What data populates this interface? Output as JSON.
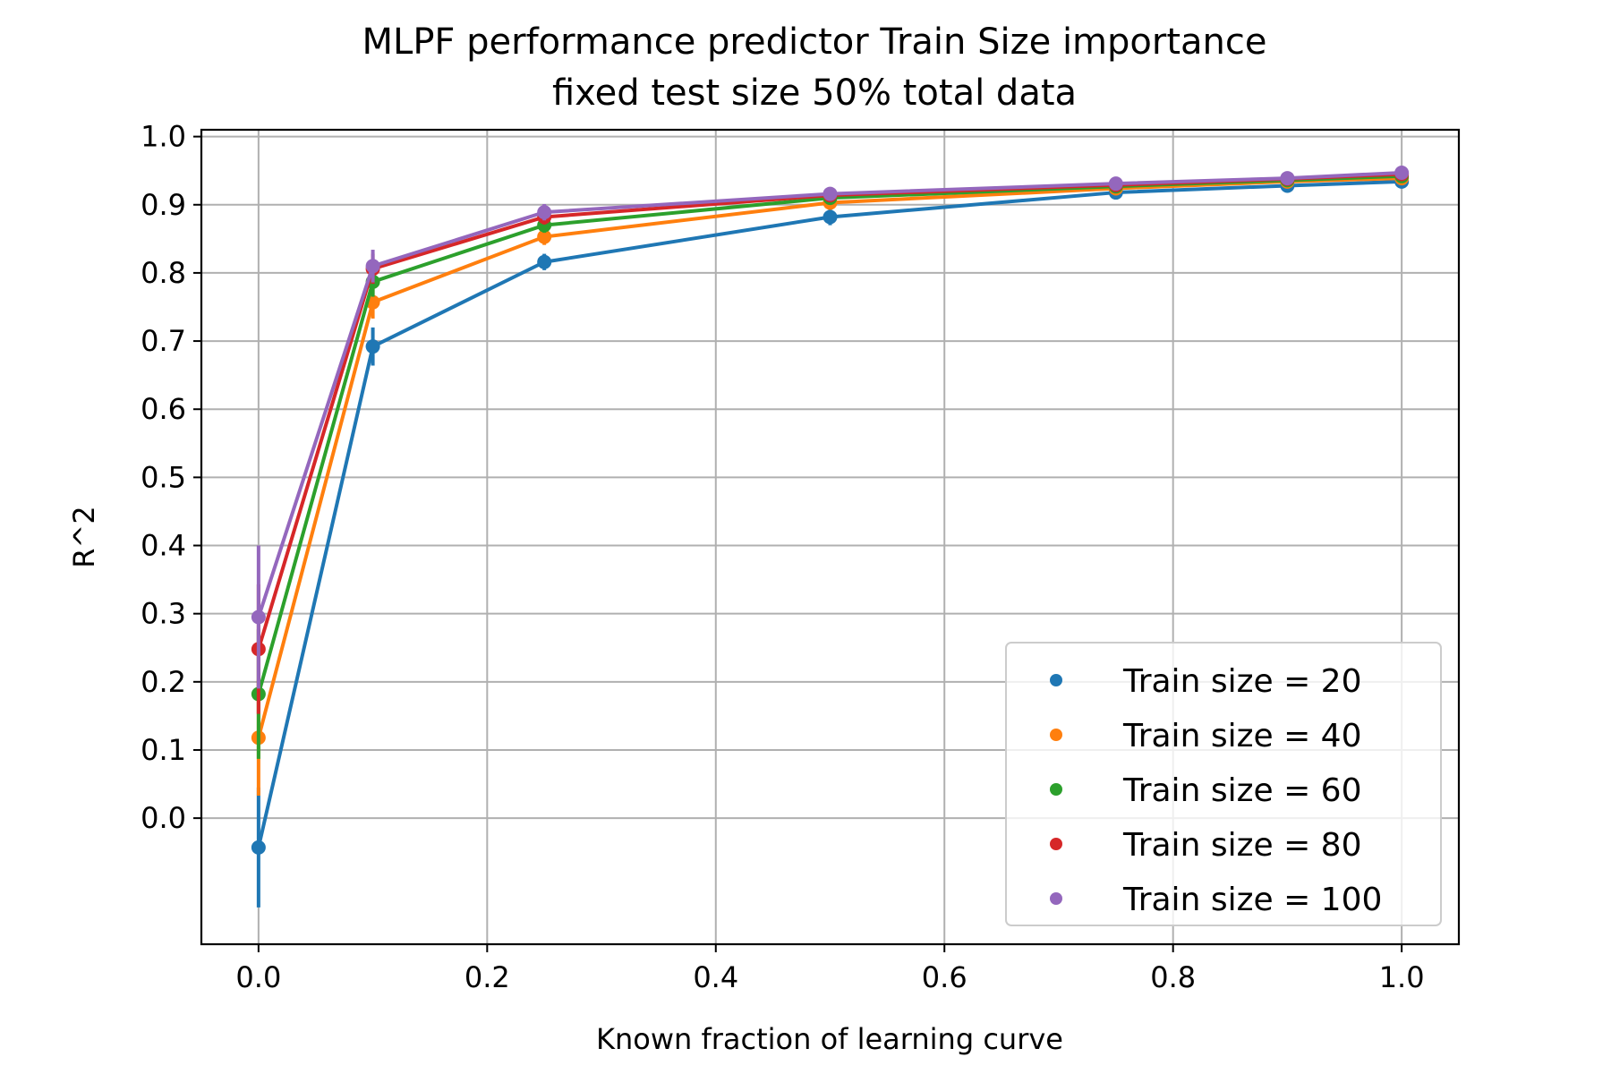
{
  "chart_data": {
    "type": "line",
    "title": "MLPF performance predictor Train Size importance",
    "subtitle": "fixed test size 50% total data",
    "xlabel": "Known fraction of learning curve",
    "ylabel": "R^2",
    "xlim": [
      -0.05,
      1.05
    ],
    "ylim": [
      -0.185,
      1.01
    ],
    "xticks": [
      0.0,
      0.2,
      0.4,
      0.6,
      0.8,
      1.0
    ],
    "xtick_labels": [
      "0.0",
      "0.2",
      "0.4",
      "0.6",
      "0.8",
      "1.0"
    ],
    "yticks": [
      0.0,
      0.1,
      0.2,
      0.3,
      0.4,
      0.5,
      0.6,
      0.7,
      0.8,
      0.9,
      1.0
    ],
    "ytick_labels": [
      "0.0",
      "0.1",
      "0.2",
      "0.3",
      "0.4",
      "0.5",
      "0.6",
      "0.7",
      "0.8",
      "0.9",
      "1.0"
    ],
    "grid": true,
    "legend_position": "bottom-right",
    "x": [
      0.0,
      0.1,
      0.25,
      0.5,
      0.75,
      0.9,
      1.0
    ],
    "series": [
      {
        "name": "Train size = 20",
        "color": "#1f77b4",
        "values": [
          -0.043,
          0.692,
          0.816,
          0.882,
          0.918,
          0.928,
          0.934
        ],
        "errors": [
          0.088,
          0.028,
          0.012,
          0.012,
          0.006,
          0.004,
          0.004
        ]
      },
      {
        "name": "Train size = 40",
        "color": "#ff7f0e",
        "values": [
          0.118,
          0.757,
          0.853,
          0.903,
          0.924,
          0.934,
          0.939
        ],
        "errors": [
          0.085,
          0.024,
          0.012,
          0.008,
          0.006,
          0.004,
          0.004
        ]
      },
      {
        "name": "Train size = 60",
        "color": "#2ca02c",
        "values": [
          0.182,
          0.787,
          0.87,
          0.91,
          0.927,
          0.936,
          0.942
        ],
        "errors": [
          0.095,
          0.022,
          0.011,
          0.008,
          0.006,
          0.004,
          0.004
        ]
      },
      {
        "name": "Train size = 80",
        "color": "#d62728",
        "values": [
          0.248,
          0.806,
          0.882,
          0.914,
          0.929,
          0.938,
          0.945
        ],
        "errors": [
          0.095,
          0.022,
          0.011,
          0.008,
          0.006,
          0.004,
          0.004
        ]
      },
      {
        "name": "Train size = 100",
        "color": "#9467bd",
        "values": [
          0.295,
          0.81,
          0.889,
          0.916,
          0.931,
          0.939,
          0.947
        ],
        "errors": [
          0.105,
          0.024,
          0.012,
          0.01,
          0.008,
          0.004,
          0.004
        ]
      }
    ]
  }
}
